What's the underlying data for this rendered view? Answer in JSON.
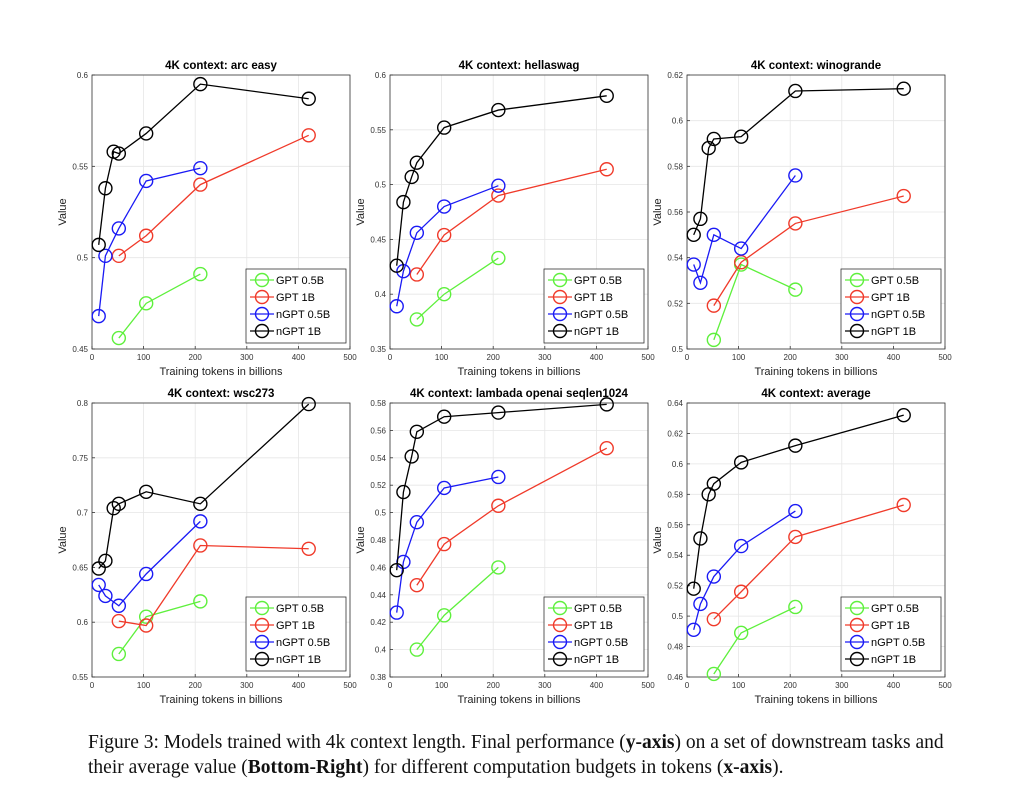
{
  "caption": {
    "segments": [
      {
        "text": "Figure 3:  Models trained with 4k context length. Final performance (",
        "bold": false
      },
      {
        "text": "y-axis",
        "bold": true
      },
      {
        "text": ") on a set of downstream tasks and their average value (",
        "bold": false
      },
      {
        "text": "Bottom-Right",
        "bold": true
      },
      {
        "text": ") for different computation budgets in tokens (",
        "bold": false
      },
      {
        "text": "x-axis",
        "bold": true
      },
      {
        "text": ").",
        "bold": false
      }
    ]
  },
  "colors": {
    "GPT 0.5B": "#5ef03c",
    "GPT 1B": "#f03a2a",
    "nGPT 0.5B": "#1a1af5",
    "nGPT 1B": "#000000"
  },
  "chart_data": [
    {
      "type": "line",
      "title": "4K context:  arc easy",
      "xlabel": "Training tokens in billions",
      "ylabel": "Value",
      "xlim": [
        0,
        500
      ],
      "ylim": [
        0.45,
        0.6
      ],
      "xticks": [
        0,
        100,
        200,
        300,
        400,
        500
      ],
      "yticks": [
        0.45,
        0.5,
        0.55,
        0.6
      ],
      "xtick_labels": [
        "0",
        "100",
        "200",
        "300",
        "400",
        "500"
      ],
      "ytick_labels": [
        "0.45",
        "0.5",
        "0.55",
        "0.6"
      ],
      "grid": true,
      "legend": "bottom-right",
      "series": [
        {
          "name": "GPT 0.5B",
          "x": [
            52,
            105,
            210
          ],
          "y": [
            0.456,
            0.475,
            0.491
          ]
        },
        {
          "name": "GPT 1B",
          "x": [
            52,
            105,
            210,
            420
          ],
          "y": [
            0.501,
            0.512,
            0.54,
            0.567
          ]
        },
        {
          "name": "nGPT 0.5B",
          "x": [
            13,
            26,
            52,
            105,
            210
          ],
          "y": [
            0.468,
            0.501,
            0.516,
            0.542,
            0.549
          ]
        },
        {
          "name": "nGPT 1B",
          "x": [
            13,
            26,
            42,
            52,
            105,
            210,
            420
          ],
          "y": [
            0.507,
            0.538,
            0.558,
            0.557,
            0.568,
            0.595,
            0.587
          ]
        }
      ]
    },
    {
      "type": "line",
      "title": "4K context:  hellaswag",
      "xlabel": "Training tokens in billions",
      "ylabel": "Value",
      "xlim": [
        0,
        500
      ],
      "ylim": [
        0.35,
        0.6
      ],
      "xticks": [
        0,
        100,
        200,
        300,
        400,
        500
      ],
      "yticks": [
        0.35,
        0.4,
        0.45,
        0.5,
        0.55,
        0.6
      ],
      "xtick_labels": [
        "0",
        "100",
        "200",
        "300",
        "400",
        "500"
      ],
      "ytick_labels": [
        "0.35",
        "0.4",
        "0.45",
        "0.5",
        "0.55",
        "0.6"
      ],
      "grid": true,
      "legend": "bottom-right",
      "series": [
        {
          "name": "GPT 0.5B",
          "x": [
            52,
            105,
            210
          ],
          "y": [
            0.377,
            0.4,
            0.433
          ]
        },
        {
          "name": "GPT 1B",
          "x": [
            52,
            105,
            210,
            420
          ],
          "y": [
            0.418,
            0.454,
            0.49,
            0.514
          ]
        },
        {
          "name": "nGPT 0.5B",
          "x": [
            13,
            26,
            52,
            105,
            210
          ],
          "y": [
            0.389,
            0.421,
            0.456,
            0.48,
            0.499
          ]
        },
        {
          "name": "nGPT 1B",
          "x": [
            13,
            26,
            42,
            52,
            105,
            210,
            420
          ],
          "y": [
            0.426,
            0.484,
            0.507,
            0.52,
            0.552,
            0.568,
            0.581
          ]
        }
      ]
    },
    {
      "type": "line",
      "title": "4K context:  winogrande",
      "xlabel": "Training tokens in billions",
      "ylabel": "Value",
      "xlim": [
        0,
        500
      ],
      "ylim": [
        0.5,
        0.62
      ],
      "xticks": [
        0,
        100,
        200,
        300,
        400,
        500
      ],
      "yticks": [
        0.5,
        0.52,
        0.54,
        0.56,
        0.58,
        0.6,
        0.62
      ],
      "xtick_labels": [
        "0",
        "100",
        "200",
        "300",
        "400",
        "500"
      ],
      "ytick_labels": [
        "0.5",
        "0.52",
        "0.54",
        "0.56",
        "0.58",
        "0.6",
        "0.62"
      ],
      "grid": true,
      "legend": "bottom-right",
      "series": [
        {
          "name": "GPT 0.5B",
          "x": [
            52,
            105,
            210
          ],
          "y": [
            0.504,
            0.537,
            0.526
          ]
        },
        {
          "name": "GPT 1B",
          "x": [
            52,
            105,
            210,
            420
          ],
          "y": [
            0.519,
            0.538,
            0.555,
            0.567
          ]
        },
        {
          "name": "nGPT 0.5B",
          "x": [
            13,
            26,
            52,
            105,
            210
          ],
          "y": [
            0.537,
            0.529,
            0.55,
            0.544,
            0.576
          ]
        },
        {
          "name": "nGPT 1B",
          "x": [
            13,
            26,
            42,
            52,
            105,
            210,
            420
          ],
          "y": [
            0.55,
            0.557,
            0.588,
            0.592,
            0.593,
            0.613,
            0.614
          ]
        }
      ]
    },
    {
      "type": "line",
      "title": "4K context:  wsc273",
      "xlabel": "Training tokens in billions",
      "ylabel": "Value",
      "xlim": [
        0,
        500
      ],
      "ylim": [
        0.55,
        0.8
      ],
      "xticks": [
        0,
        100,
        200,
        300,
        400,
        500
      ],
      "yticks": [
        0.55,
        0.6,
        0.65,
        0.7,
        0.75,
        0.8
      ],
      "xtick_labels": [
        "0",
        "100",
        "200",
        "300",
        "400",
        "500"
      ],
      "ytick_labels": [
        "0.55",
        "0.6",
        "0.65",
        "0.7",
        "0.75",
        "0.8"
      ],
      "grid": true,
      "legend": "bottom-right",
      "series": [
        {
          "name": "GPT 0.5B",
          "x": [
            52,
            105,
            210
          ],
          "y": [
            0.571,
            0.605,
            0.619
          ]
        },
        {
          "name": "GPT 1B",
          "x": [
            52,
            105,
            210,
            420
          ],
          "y": [
            0.601,
            0.597,
            0.67,
            0.667
          ]
        },
        {
          "name": "nGPT 0.5B",
          "x": [
            13,
            26,
            52,
            105,
            210
          ],
          "y": [
            0.634,
            0.624,
            0.615,
            0.644,
            0.692
          ]
        },
        {
          "name": "nGPT 1B",
          "x": [
            13,
            26,
            42,
            52,
            105,
            210,
            420
          ],
          "y": [
            0.649,
            0.656,
            0.704,
            0.708,
            0.719,
            0.708,
            0.799
          ]
        }
      ]
    },
    {
      "type": "line",
      "title": "4K context:  lambada openai seqlen1024",
      "xlabel": "Training tokens in billions",
      "ylabel": "Value",
      "xlim": [
        0,
        500
      ],
      "ylim": [
        0.38,
        0.58
      ],
      "xticks": [
        0,
        100,
        200,
        300,
        400,
        500
      ],
      "yticks": [
        0.38,
        0.4,
        0.42,
        0.44,
        0.46,
        0.48,
        0.5,
        0.52,
        0.54,
        0.56,
        0.58
      ],
      "xtick_labels": [
        "0",
        "100",
        "200",
        "300",
        "400",
        "500"
      ],
      "ytick_labels": [
        "0.38",
        "0.4",
        "0.42",
        "0.44",
        "0.46",
        "0.48",
        "0.5",
        "0.52",
        "0.54",
        "0.56",
        "0.58"
      ],
      "grid": true,
      "legend": "bottom-right",
      "series": [
        {
          "name": "GPT 0.5B",
          "x": [
            52,
            105,
            210
          ],
          "y": [
            0.4,
            0.425,
            0.46
          ]
        },
        {
          "name": "GPT 1B",
          "x": [
            52,
            105,
            210,
            420
          ],
          "y": [
            0.447,
            0.477,
            0.505,
            0.547
          ]
        },
        {
          "name": "nGPT 0.5B",
          "x": [
            13,
            26,
            52,
            105,
            210
          ],
          "y": [
            0.427,
            0.464,
            0.493,
            0.518,
            0.526
          ]
        },
        {
          "name": "nGPT 1B",
          "x": [
            13,
            26,
            42,
            52,
            105,
            210,
            420
          ],
          "y": [
            0.458,
            0.515,
            0.541,
            0.559,
            0.57,
            0.573,
            0.579
          ]
        }
      ]
    },
    {
      "type": "line",
      "title": "4K context:  average",
      "xlabel": "Training tokens in billions",
      "ylabel": "Value",
      "xlim": [
        0,
        500
      ],
      "ylim": [
        0.46,
        0.64
      ],
      "xticks": [
        0,
        100,
        200,
        300,
        400,
        500
      ],
      "yticks": [
        0.46,
        0.48,
        0.5,
        0.52,
        0.54,
        0.56,
        0.58,
        0.6,
        0.62,
        0.64
      ],
      "xtick_labels": [
        "0",
        "100",
        "200",
        "300",
        "400",
        "500"
      ],
      "ytick_labels": [
        "0.46",
        "0.48",
        "0.5",
        "0.52",
        "0.54",
        "0.56",
        "0.58",
        "0.6",
        "0.62",
        "0.64"
      ],
      "grid": true,
      "legend": "bottom-right",
      "series": [
        {
          "name": "GPT 0.5B",
          "x": [
            52,
            105,
            210
          ],
          "y": [
            0.462,
            0.489,
            0.506
          ]
        },
        {
          "name": "GPT 1B",
          "x": [
            52,
            105,
            210,
            420
          ],
          "y": [
            0.498,
            0.516,
            0.552,
            0.573
          ]
        },
        {
          "name": "nGPT 0.5B",
          "x": [
            13,
            26,
            52,
            105,
            210
          ],
          "y": [
            0.491,
            0.508,
            0.526,
            0.546,
            0.569
          ]
        },
        {
          "name": "nGPT 1B",
          "x": [
            13,
            26,
            42,
            52,
            105,
            210,
            420
          ],
          "y": [
            0.518,
            0.551,
            0.58,
            0.587,
            0.601,
            0.612,
            0.632
          ]
        }
      ]
    }
  ]
}
